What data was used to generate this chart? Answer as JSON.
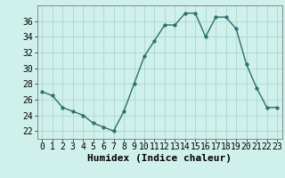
{
  "x": [
    0,
    1,
    2,
    3,
    4,
    5,
    6,
    7,
    8,
    9,
    10,
    11,
    12,
    13,
    14,
    15,
    16,
    17,
    18,
    19,
    20,
    21,
    22,
    23
  ],
  "y": [
    27,
    26.5,
    25,
    24.5,
    24,
    23,
    22.5,
    22,
    24.5,
    28,
    31.5,
    33.5,
    35.5,
    35.5,
    37,
    37,
    34,
    36.5,
    36.5,
    35,
    30.5,
    27.5,
    25,
    25
  ],
  "line_color": "#2d6e6e",
  "marker": "o",
  "marker_size": 2.5,
  "bg_color": "#cff0eb",
  "grid_color": "#aad8d0",
  "xlabel": "Humidex (Indice chaleur)",
  "ylabel": "",
  "ylim": [
    21,
    38
  ],
  "xlim": [
    -0.5,
    23.5
  ],
  "yticks": [
    22,
    24,
    26,
    28,
    30,
    32,
    34,
    36
  ],
  "xticks": [
    0,
    1,
    2,
    3,
    4,
    5,
    6,
    7,
    8,
    9,
    10,
    11,
    12,
    13,
    14,
    15,
    16,
    17,
    18,
    19,
    20,
    21,
    22,
    23
  ],
  "xlabel_fontsize": 8,
  "tick_fontsize": 7
}
